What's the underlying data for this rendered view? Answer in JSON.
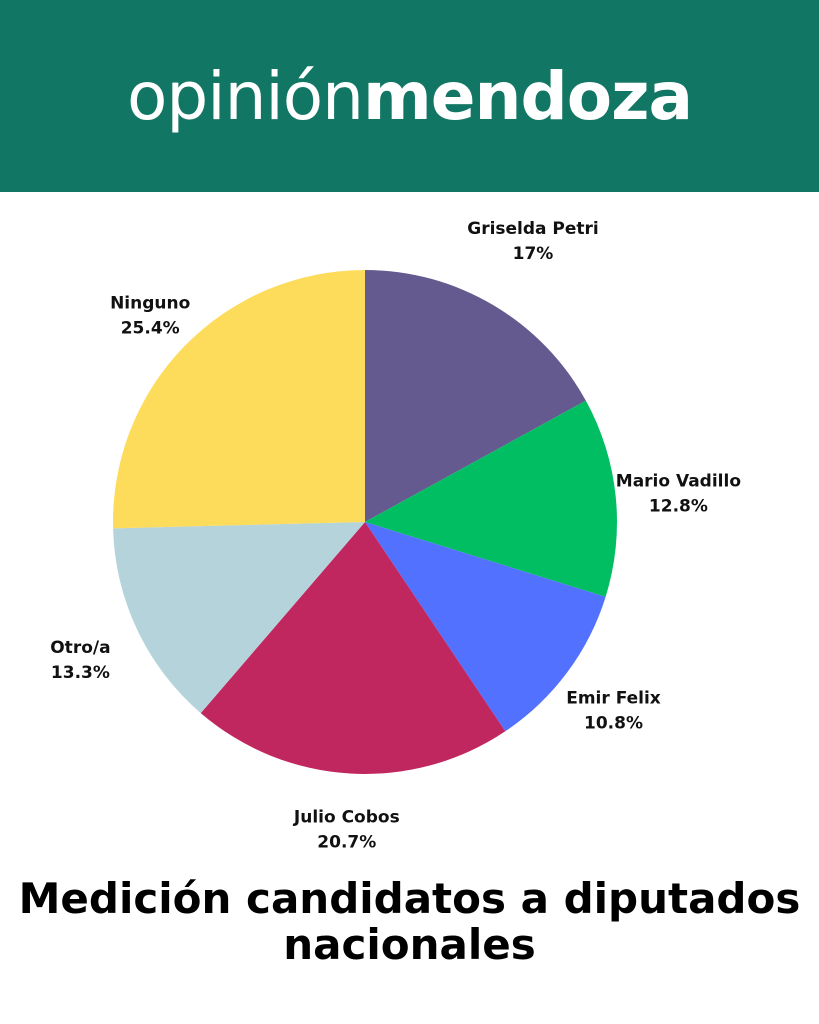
{
  "brand": {
    "logo_light": "opinión",
    "logo_bold": "mendoza",
    "header_color": "#117663"
  },
  "chart_data": {
    "type": "pie",
    "title": "Medición candidatos a diputados nacionales",
    "unit": "%",
    "slices": [
      {
        "label": "Griselda Petri",
        "value": 17,
        "display": "17%",
        "color": "#655a8f"
      },
      {
        "label": "Mario Vadillo",
        "value": 12.8,
        "display": "12.8%",
        "color": "#01be63"
      },
      {
        "label": "Emir Felix",
        "value": 10.8,
        "display": "10.8%",
        "color": "#5271ff"
      },
      {
        "label": "Julio Cobos",
        "value": 20.7,
        "display": "20.7%",
        "color": "#c1275f"
      },
      {
        "label": "Otro/a",
        "value": 13.3,
        "display": "13.3%",
        "color": "#b5d3da"
      },
      {
        "label": "Ninguno",
        "value": 25.4,
        "display": "25.4%",
        "color": "#fddb5b"
      }
    ]
  }
}
